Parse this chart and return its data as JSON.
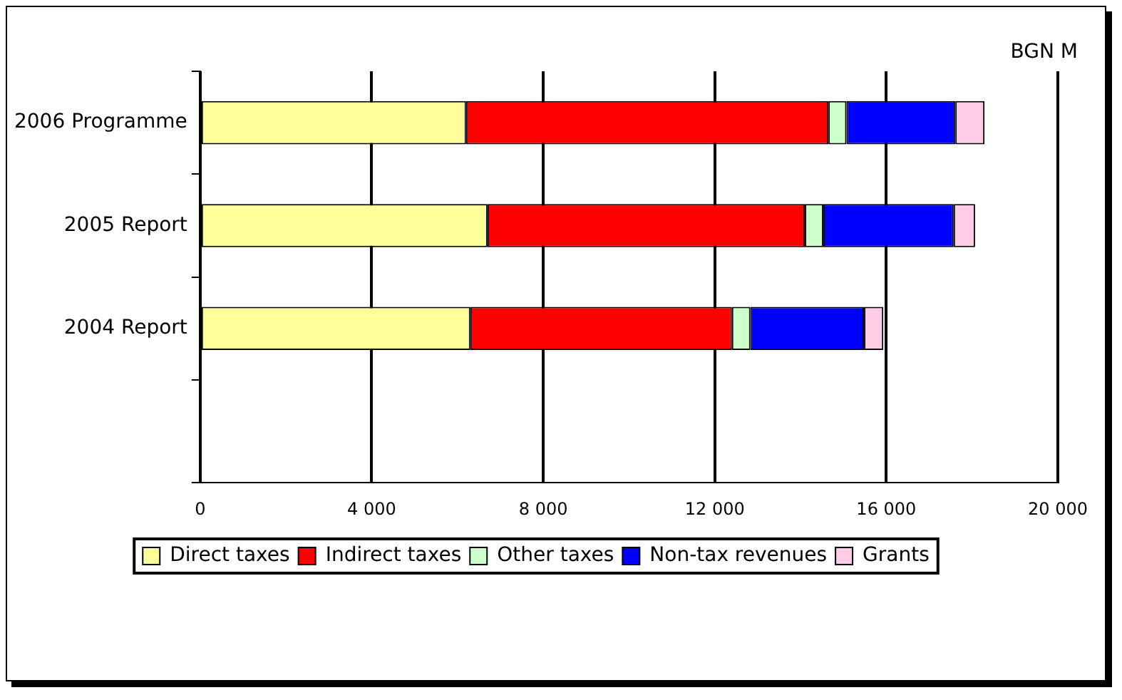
{
  "chart_data": {
    "type": "bar",
    "orientation": "horizontal",
    "stacked": true,
    "categories": [
      "2006 Programme",
      "2005 Report",
      "2004 Report",
      null
    ],
    "series": [
      {
        "name": "Direct taxes",
        "color": "#ffff99",
        "values": [
          6200,
          6700,
          6300,
          null
        ]
      },
      {
        "name": "Indirect taxes",
        "color": "#ff0000",
        "values": [
          8450,
          7400,
          6100,
          null
        ]
      },
      {
        "name": "Other taxes",
        "color": "#ccffcc",
        "values": [
          420,
          430,
          430,
          null
        ]
      },
      {
        "name": "Non-tax revenues",
        "color": "#0000ff",
        "values": [
          2540,
          3040,
          2650,
          null
        ]
      },
      {
        "name": "Grants",
        "color": "#ffcce6",
        "values": [
          680,
          500,
          450,
          null
        ]
      }
    ],
    "xlim": [
      0,
      20000
    ],
    "xticks": [
      {
        "value": 0,
        "label": "0"
      },
      {
        "value": 4000,
        "label": "4 000"
      },
      {
        "value": 8000,
        "label": "8 000"
      },
      {
        "value": 12000,
        "label": "12 000"
      },
      {
        "value": 16000,
        "label": "16 000"
      },
      {
        "value": 20000,
        "label": "20 000"
      }
    ],
    "grid": "x",
    "legend": "bottom",
    "annotations": [
      "BGN M"
    ]
  }
}
